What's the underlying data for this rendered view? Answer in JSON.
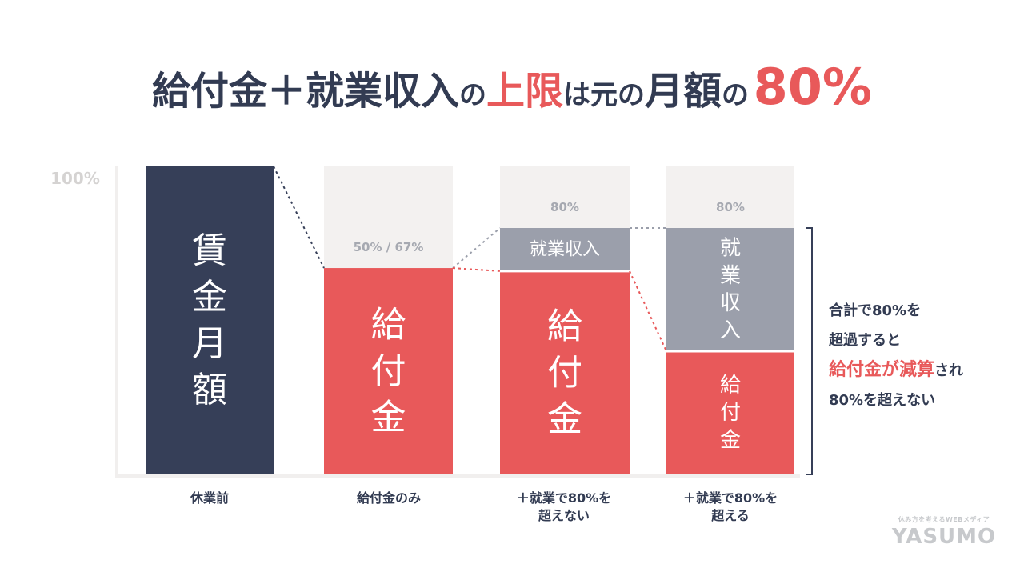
{
  "title": {
    "part1": "給付金＋就業収入",
    "part2": "の",
    "part3": "上限",
    "part4": "は",
    "part5": "元",
    "part6": "の",
    "part7": "月額",
    "part8": "の",
    "part9": "80%"
  },
  "colors": {
    "navy": "#363f58",
    "red": "#e8595a",
    "gray": "#9b9fab",
    "light": "#f3f1f0",
    "axis": "#b9bcc4"
  },
  "chart_data": {
    "type": "bar",
    "stacked": true,
    "ylim": [
      0,
      100
    ],
    "y_tick_label": "100%",
    "categories": [
      [
        "休業前"
      ],
      [
        "給付金のみ"
      ],
      [
        "＋就業で80%を",
        "超えない"
      ],
      [
        "＋就業で80%を",
        "超える"
      ]
    ],
    "bars": [
      {
        "segments": [
          {
            "label": "賃金月額",
            "value": 100,
            "color": "navy",
            "text_color": "#ffffff",
            "vertical": true,
            "font": 44
          }
        ]
      },
      {
        "segments": [
          {
            "label": "給付金",
            "value": 67,
            "color": "red",
            "text_color": "#ffffff",
            "vertical": true,
            "font": 44
          }
        ],
        "top_label": "50%  /  67%"
      },
      {
        "segments": [
          {
            "label": "給付金",
            "value": 66,
            "color": "red",
            "text_color": "#ffffff",
            "vertical": true,
            "font": 44
          },
          {
            "label": "就業収入",
            "value": 14,
            "color": "gray",
            "text_color": "#ffffff",
            "vertical": false,
            "font": 22
          }
        ],
        "top_label": "80%"
      },
      {
        "segments": [
          {
            "label": "給付金",
            "value": 40,
            "color": "red",
            "text_color": "#ffffff",
            "vertical": true,
            "font": 26
          },
          {
            "label": "就業収入",
            "value": 40,
            "color": "gray",
            "text_color": "#ffffff",
            "vertical": true,
            "font": 26
          }
        ],
        "top_label": "80%"
      }
    ]
  },
  "note": {
    "line1": "合計で80%を",
    "line2": "超過すると",
    "line3a": "給付金が減算",
    "line3b": "され",
    "line4": "80%を超えない"
  },
  "logo": {
    "tagline": "休み方を考えるWEBメディア",
    "name": "YASUMO"
  }
}
